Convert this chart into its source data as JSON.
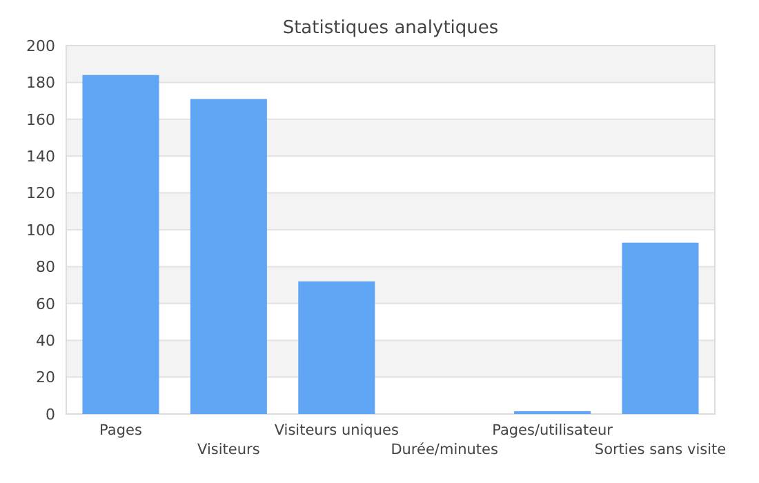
{
  "chart_data": {
    "type": "bar",
    "title": "Statistiques analytiques",
    "categories": [
      "Pages",
      "Visiteurs",
      "Visiteurs uniques",
      "Durée/minutes",
      "Pages/utilisateur",
      "Sorties sans visite"
    ],
    "values": [
      184,
      171,
      72,
      0,
      1.5,
      93
    ],
    "color": "#60a6f4",
    "ylim": [
      0,
      200
    ],
    "yticks": [
      0,
      20,
      40,
      60,
      80,
      100,
      120,
      140,
      160,
      180,
      200
    ],
    "grid": "y"
  }
}
